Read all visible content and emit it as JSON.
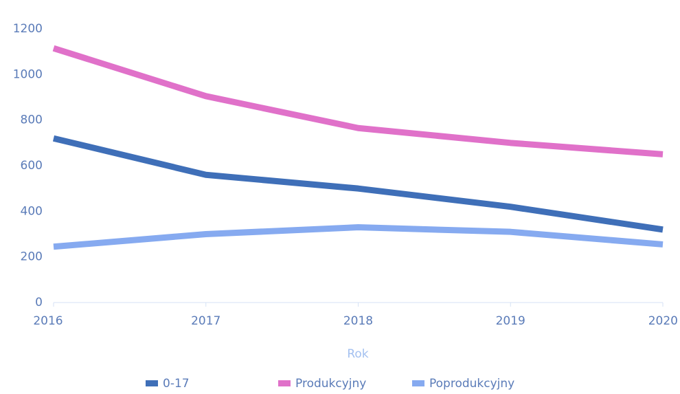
{
  "chart_data": {
    "type": "line",
    "x": [
      2016,
      2017,
      2018,
      2019,
      2020
    ],
    "xlim": [
      2016,
      2020
    ],
    "xticks": [
      2016,
      2017,
      2018,
      2019,
      2020
    ],
    "ylim": [
      0,
      1200
    ],
    "yticks": [
      0,
      200,
      400,
      600,
      800,
      1000,
      1200
    ],
    "xlabel": "Rok",
    "series": [
      {
        "name": "0-17",
        "color": "#3f6fb8",
        "values": [
          720,
          560,
          500,
          420,
          320
        ]
      },
      {
        "name": "Produkcyjny",
        "color": "#e071c9",
        "values": [
          1115,
          905,
          765,
          700,
          650
        ]
      },
      {
        "name": "Poprodukcyjny",
        "color": "#86aaf0",
        "values": [
          245,
          300,
          330,
          310,
          255
        ]
      }
    ]
  }
}
